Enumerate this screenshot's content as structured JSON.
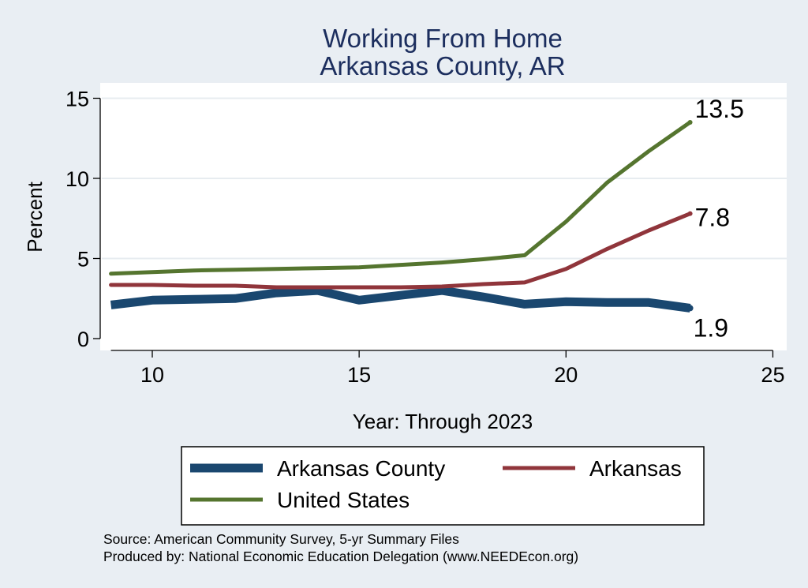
{
  "chart_data": {
    "type": "line",
    "title": "Working From Home",
    "subtitle": "Arkansas County, AR",
    "xlabel": "Year: Through 2023",
    "ylabel": "Percent",
    "xlim": [
      9,
      25
    ],
    "ylim": [
      0,
      15
    ],
    "xticks": [
      10,
      15,
      20,
      25
    ],
    "yticks": [
      0,
      5,
      10,
      15
    ],
    "grid": true,
    "legend_position": "bottom",
    "series": [
      {
        "name": "Arkansas County",
        "color": "#1a476f",
        "x": [
          9,
          10,
          11,
          12,
          13,
          14,
          15,
          16,
          17,
          18,
          19,
          20,
          21,
          22,
          23
        ],
        "y": [
          2.1,
          2.4,
          2.45,
          2.5,
          2.85,
          3.0,
          2.4,
          2.7,
          3.0,
          2.6,
          2.15,
          2.3,
          2.25,
          2.25,
          1.9
        ],
        "end_label": "1.9"
      },
      {
        "name": "Arkansas",
        "color": "#90353b",
        "x": [
          9,
          10,
          11,
          12,
          13,
          14,
          15,
          16,
          17,
          18,
          19,
          20,
          21,
          22,
          23
        ],
        "y": [
          3.35,
          3.35,
          3.3,
          3.3,
          3.2,
          3.2,
          3.2,
          3.2,
          3.25,
          3.4,
          3.5,
          4.35,
          5.6,
          6.75,
          7.8
        ],
        "end_label": "7.8"
      },
      {
        "name": "United States",
        "color": "#55752f",
        "x": [
          9,
          10,
          11,
          12,
          13,
          14,
          15,
          16,
          17,
          18,
          19,
          20,
          21,
          22,
          23
        ],
        "y": [
          4.05,
          4.15,
          4.25,
          4.3,
          4.35,
          4.4,
          4.45,
          4.6,
          4.75,
          4.95,
          5.2,
          7.3,
          9.75,
          11.7,
          13.5
        ],
        "end_label": "13.5"
      }
    ]
  },
  "source": {
    "line1": "Source: American Community Survey, 5-yr Summary Files",
    "line2": "Produced by: National Economic Education Delegation (www.NEEDEcon.org)"
  }
}
